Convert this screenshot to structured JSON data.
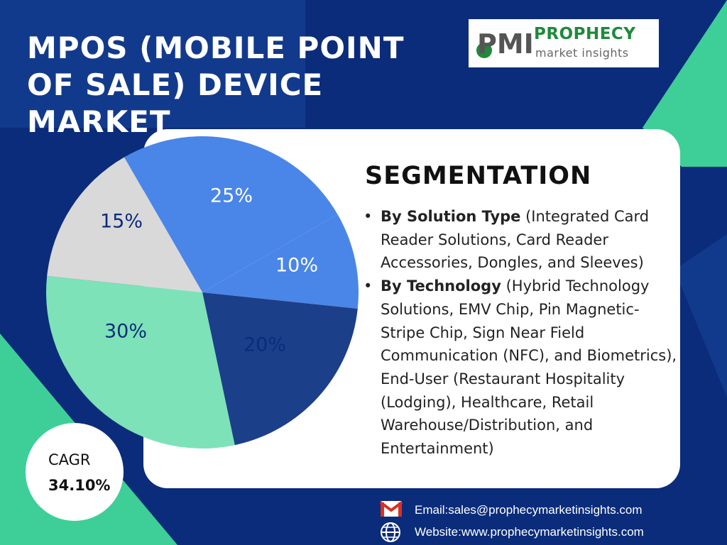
{
  "title": "MPOS (MOBILE POINT OF SALE) DEVICE MARKET",
  "logo": {
    "line1": "PROPHECY",
    "line2": "market insights",
    "mark": "PMI"
  },
  "segmentation": {
    "heading": "SEGMENTATION",
    "items": [
      {
        "label": "By Solution Type",
        "text": " (Integrated Card Reader Solutions, Card Reader Accessories, Dongles, and Sleeves)"
      },
      {
        "label": "By Technology",
        "text": " (Hybrid Technology Solutions, EMV Chip, Pin Magnetic-Stripe Chip, Sign Near Field Communication (NFC), and Biometrics), End-User (Restaurant Hospitality (Lodging), Healthcare, Retail Warehouse/Distribution, and Entertainment)"
      }
    ]
  },
  "cagr": {
    "label": "CAGR",
    "value": "34.10%"
  },
  "contact": {
    "email": "Email:sales@prophecymarketinsights.com",
    "website": "Website:www.prophecymarketinsights.com",
    "email_icon": "gmail-icon",
    "website_icon": "globe-icon"
  },
  "colors": {
    "background": "#0b2c7a",
    "accent_green": "#3ecf8e",
    "pie_blue": "#4a86e8",
    "pie_navy": "#1c3f8a",
    "pie_mint": "#7de2b8",
    "pie_green": "#3ecf99",
    "pie_grey": "#d9d9d9"
  },
  "chart_data": {
    "type": "pie",
    "labels": [
      "25%",
      "10%",
      "20%",
      "30%",
      "15%"
    ],
    "values": [
      25,
      10,
      20,
      30,
      15
    ],
    "colors": [
      "#4a86e8",
      "#4a86e8",
      "#1c3f8a",
      "#7de2b8",
      "#d9d9d9"
    ],
    "label_colors": [
      "#ffffff",
      "#ffffff",
      "#0b2c7a",
      "#0b2c7a",
      "#0b2c7a"
    ]
  }
}
